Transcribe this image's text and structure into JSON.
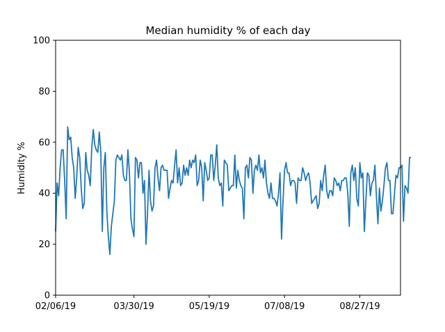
{
  "chart_data": {
    "type": "line",
    "title": "Median humidity % of each day",
    "xlabel": "",
    "ylabel": "Humidity %",
    "ylim": [
      0,
      100
    ],
    "yticks": [
      0,
      20,
      40,
      60,
      80,
      100
    ],
    "xticks": [
      {
        "x": 0,
        "label": "02/06/19"
      },
      {
        "x": 52,
        "label": "03/30/19"
      },
      {
        "x": 102,
        "label": "05/19/19"
      },
      {
        "x": 152,
        "label": "07/08/19"
      },
      {
        "x": 202,
        "label": "08/27/19"
      }
    ],
    "xlim": [
      0,
      229
    ],
    "grid": false,
    "line_color": "#1f77b4",
    "series": [
      {
        "name": "",
        "values": [
          25,
          44,
          39,
          50,
          57,
          57,
          45,
          30,
          66,
          61,
          62,
          54,
          50,
          38,
          46,
          58,
          54,
          42,
          34,
          36,
          56,
          49,
          47,
          43,
          58,
          65,
          59,
          57,
          56,
          64,
          56,
          25,
          50,
          56,
          33,
          23,
          16,
          27,
          32,
          37,
          53,
          55,
          54,
          53,
          55,
          47,
          45,
          45,
          57,
          48,
          30,
          26,
          23,
          54,
          53,
          46,
          52,
          52,
          40,
          45,
          20,
          32,
          49,
          37,
          33,
          35,
          50,
          53,
          46,
          41,
          50,
          51,
          49,
          49,
          49,
          38,
          42,
          45,
          44,
          51,
          57,
          44,
          50,
          43,
          44,
          51,
          47,
          50,
          47,
          53,
          50,
          53,
          52,
          55,
          43,
          45,
          53,
          50,
          37,
          52,
          49,
          45,
          46,
          55,
          55,
          45,
          51,
          59,
          46,
          43,
          44,
          35,
          53,
          52,
          51,
          41,
          42,
          43,
          43,
          55,
          42,
          49,
          45,
          43,
          42,
          30,
          50,
          51,
          46,
          54,
          53,
          40,
          49,
          51,
          49,
          55,
          48,
          50,
          46,
          53,
          44,
          40,
          38,
          44,
          38,
          38,
          37,
          35,
          40,
          48,
          22,
          37,
          49,
          52,
          48,
          48,
          43,
          45,
          45,
          44,
          36,
          46,
          45,
          45,
          50,
          48,
          45,
          47,
          48,
          44,
          36,
          37,
          38,
          39,
          34,
          36,
          45,
          41,
          47,
          51,
          41,
          38,
          41,
          41,
          39,
          46,
          45,
          43,
          44,
          41,
          45,
          45,
          46,
          46,
          40,
          27,
          48,
          51,
          45,
          50,
          38,
          35,
          52,
          46,
          48,
          25,
          37,
          48,
          47,
          39,
          44,
          45,
          51,
          39,
          28,
          42,
          33,
          37,
          43,
          50,
          52,
          45,
          45,
          32,
          32,
          40,
          47,
          46,
          50,
          50,
          51,
          29,
          43,
          42,
          40,
          54,
          54
        ]
      }
    ]
  }
}
